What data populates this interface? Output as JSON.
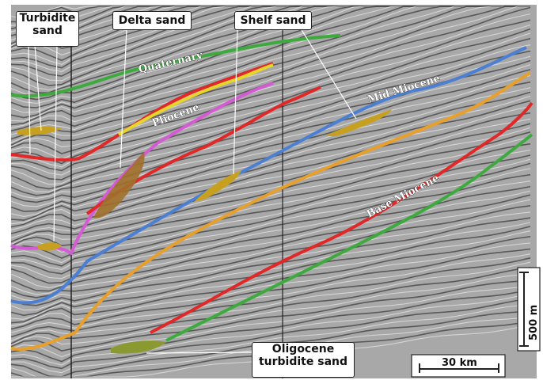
{
  "callouts": {
    "turbidite_sand": [
      "Turbidite",
      "sand"
    ],
    "delta_sand": "Delta sand",
    "shelf_sand": "Shelf sand",
    "oligocene_turbidite_sand": [
      "Oligocene",
      "turbidite sand"
    ]
  },
  "horizons": {
    "quaternary": "Quaternary",
    "pliocene": "Pliocene",
    "mid_miocene": "Mid Miocene",
    "base_miocene": "Base Miocene"
  },
  "scale_bars": {
    "vertical": "500 m",
    "horizontal": "30 km"
  },
  "colors": {
    "quaternary": "#3daa3d",
    "red": "#e02828",
    "yellow": "#e8d62a",
    "pliocene": "#d55bd5",
    "mid_miocene": "#4a7fd4",
    "orange": "#e8a02a",
    "base_miocene": "#3daa3d",
    "sand": "#c8a020",
    "delta_sand": "#a0702a"
  }
}
